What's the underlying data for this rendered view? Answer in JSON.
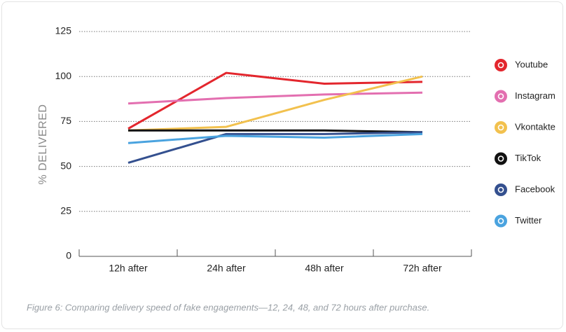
{
  "chart_data": {
    "type": "line",
    "y_label": "% DELIVERED",
    "caption": "Figure 6: Comparing delivery speed of fake engagements—12, 24, 48, and 72 hours after purchase.",
    "categories": [
      "12h after",
      "24h after",
      "48h after",
      "72h after"
    ],
    "series": [
      {
        "name": "Youtube",
        "color": "#e3262d",
        "values": [
          71,
          102,
          96,
          97
        ]
      },
      {
        "name": "Instagram",
        "color": "#e36fb0",
        "values": [
          85,
          88,
          90,
          91
        ]
      },
      {
        "name": "Vkontakte",
        "color": "#f2c14e",
        "values": [
          70,
          72,
          87,
          100
        ]
      },
      {
        "name": "TikTok",
        "color": "#111111",
        "values": [
          70,
          70,
          70,
          69
        ]
      },
      {
        "name": "Facebook",
        "color": "#34508f",
        "values": [
          52,
          68,
          68,
          69
        ]
      },
      {
        "name": "Twitter",
        "color": "#4aa3df",
        "values": [
          63,
          67,
          66,
          68
        ]
      }
    ],
    "ylim": [
      0,
      125
    ],
    "yticks": [
      0,
      25,
      50,
      75,
      100,
      125
    ],
    "grid": true,
    "legend": "right"
  }
}
